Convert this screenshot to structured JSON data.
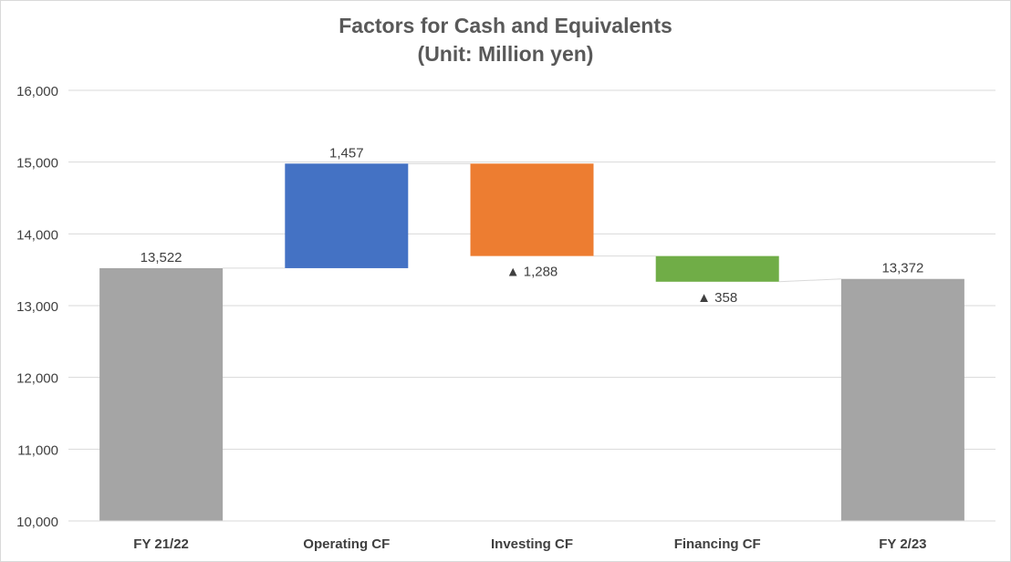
{
  "chart_data": {
    "type": "bar",
    "subtype": "waterfall",
    "title": "Factors for Cash and Equivalents",
    "subtitle": "(Unit: Million yen)",
    "categories": [
      "FY 21/22",
      "Operating CF",
      "Investing CF",
      "Financing CF",
      "FY 2/23"
    ],
    "values": [
      13522,
      1457,
      -1288,
      -358,
      13372
    ],
    "bar_kinds": [
      "total",
      "change",
      "change",
      "change",
      "total"
    ],
    "data_labels": [
      "13,522",
      "1,457",
      "▲ 1,288",
      "▲ 358",
      "13,372"
    ],
    "colors": [
      "#a5a5a5",
      "#4472c4",
      "#ed7d31",
      "#70ad47",
      "#a5a5a5"
    ],
    "ylim": [
      10000,
      16000
    ],
    "yticks": [
      10000,
      11000,
      12000,
      13000,
      14000,
      15000,
      16000
    ],
    "ytick_labels": [
      "10,000",
      "11,000",
      "12,000",
      "13,000",
      "14,000",
      "15,000",
      "16,000"
    ],
    "xlabel": "",
    "ylabel": "",
    "grid": true,
    "legend": "none"
  }
}
